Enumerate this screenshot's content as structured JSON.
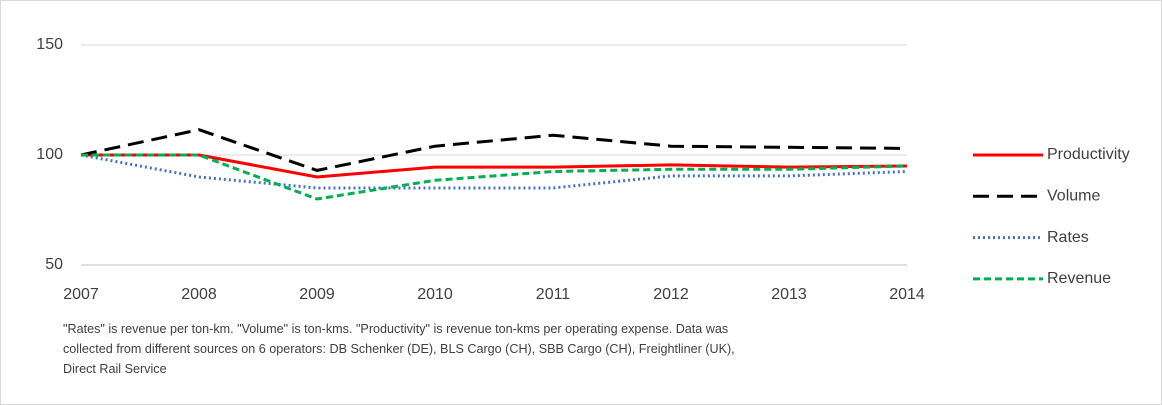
{
  "chart_data": {
    "type": "line",
    "x": [
      2007,
      2008,
      2009,
      2010,
      2011,
      2012,
      2013,
      2014
    ],
    "xlim": [
      2007,
      2014
    ],
    "xticks": [
      2007,
      2008,
      2009,
      2010,
      2011,
      2012,
      2013,
      2014
    ],
    "ylim": [
      50,
      150
    ],
    "yticks": [
      50,
      100,
      150
    ],
    "grid": true,
    "series": [
      {
        "name": "Productivity",
        "color": "#ff0000",
        "dash": "solid",
        "values": [
          100,
          100,
          90,
          94.5,
          94.5,
          95.5,
          94.5,
          95
        ]
      },
      {
        "name": "Volume",
        "color": "#000000",
        "dash": "long-dash",
        "values": [
          100,
          111.5,
          93,
          104,
          109,
          104,
          103.5,
          103
        ]
      },
      {
        "name": "Rates",
        "color": "#4472c4",
        "dash": "dot",
        "values": [
          100,
          90,
          85,
          85,
          85,
          90.5,
          90.5,
          92.5
        ]
      },
      {
        "name": "Revenue",
        "color": "#00b050",
        "dash": "dash",
        "values": [
          100,
          100,
          80,
          88.5,
          92.5,
          93.5,
          93.5,
          95
        ]
      }
    ],
    "note": "\"Rates\" is revenue per ton-km. \"Volume\" is ton-kms. \"Productivity\" is revenue ton-kms per operating expense. Data was collected from different sources on 6 operators: DB Schenker (DE), BLS Cargo (CH), SBB Cargo (CH), Freightliner (UK), Direct Rail Service"
  }
}
